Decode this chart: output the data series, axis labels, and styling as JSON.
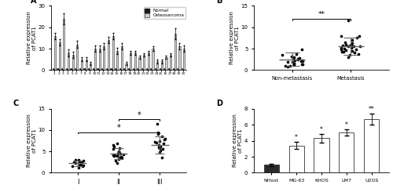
{
  "panel_A": {
    "bar_normal": [
      1,
      1,
      1,
      1,
      1,
      1,
      1,
      1,
      1,
      1,
      1,
      1,
      1,
      1,
      1,
      1,
      1,
      1,
      1,
      1,
      1,
      1,
      1,
      1,
      1,
      1,
      1,
      1,
      1,
      1
    ],
    "bar_osteo": [
      16,
      13,
      24,
      8,
      7,
      12,
      5,
      5,
      3,
      10,
      10,
      11,
      14,
      16,
      9,
      11,
      3,
      8,
      8,
      6,
      7,
      8,
      10,
      4,
      4,
      6,
      7,
      17,
      11,
      10
    ],
    "bar_osteo_err": [
      1.5,
      1.5,
      2.5,
      1.5,
      1.5,
      1.5,
      0.8,
      0.8,
      0.8,
      1.5,
      1.5,
      1.5,
      1.5,
      1.5,
      1.5,
      1.5,
      0.8,
      0.8,
      0.8,
      0.8,
      0.8,
      1.0,
      1.0,
      0.8,
      0.8,
      0.8,
      0.8,
      2.5,
      1.5,
      1.5
    ],
    "ylim": [
      0,
      30
    ],
    "yticks": [
      0,
      10,
      20,
      30
    ],
    "ylabel": "Relative expression\nof PCAT1"
  },
  "panel_B": {
    "non_meta_dots": [
      2.8,
      1.5,
      0.8,
      3.5,
      4.8,
      1.2,
      2.5,
      2.0,
      3.8,
      1.0,
      2.3,
      1.8,
      2.2,
      3.0,
      1.6,
      2.6,
      1.4,
      1.9,
      2.7,
      3.2,
      2.1,
      1.3,
      0.9
    ],
    "meta_dots": [
      5.5,
      4.0,
      8.0,
      5.0,
      4.5,
      7.0,
      5.8,
      11.5,
      4.2,
      3.0,
      5.5,
      6.5,
      4.8,
      8.0,
      5.2,
      5.8,
      4.3,
      3.5,
      6.0,
      7.5,
      5.1,
      4.6,
      3.8,
      5.6,
      6.2,
      5.9,
      4.9
    ],
    "non_meta_mean": 2.5,
    "non_meta_sd": 1.5,
    "meta_mean": 5.5,
    "meta_sd": 2.0,
    "ylim": [
      0,
      15
    ],
    "yticks": [
      0,
      5,
      10,
      15
    ],
    "ylabel": "Relative expression\nof PCAT1",
    "xticklabels": [
      "Non-metastasis",
      "Metastasis"
    ],
    "sig_label": "**"
  },
  "panel_C": {
    "stage_I_dots": [
      2.5,
      1.8,
      2.2,
      1.5,
      2.8,
      3.1,
      2.0,
      1.6,
      1.9,
      2.4,
      1.7,
      3.0,
      2.6,
      1.2,
      2.9
    ],
    "stage_II_dots": [
      4.5,
      3.8,
      6.5,
      4.2,
      5.8,
      3.5,
      4.8,
      2.2,
      4.1,
      3.9,
      6.8,
      2.8,
      5.5,
      4.3,
      3.2,
      4.0,
      6.2,
      4.5,
      5.0,
      3.6
    ],
    "stage_III_dots": [
      8.5,
      6.2,
      9.5,
      7.1,
      5.5,
      6.8,
      7.5,
      3.5,
      4.8,
      5.2,
      11.5,
      6.5,
      7.8,
      8.0,
      9.0,
      6.0,
      5.8,
      7.2
    ],
    "stage_I_mean": 2.2,
    "stage_I_sd": 0.7,
    "stage_II_mean": 4.5,
    "stage_II_sd": 1.3,
    "stage_III_mean": 6.5,
    "stage_III_sd": 2.0,
    "ylim": [
      0,
      15
    ],
    "yticks": [
      0,
      5,
      10,
      15
    ],
    "ylabel": "Relative expression\nof PCAT1",
    "xticklabels": [
      "I",
      "II",
      "III"
    ],
    "sig_label_I_III": "*",
    "sig_label_II_III": "*"
  },
  "panel_D": {
    "categories": [
      "NHost",
      "MG-63",
      "KHOS",
      "LM7",
      "U2OS"
    ],
    "means": [
      1.0,
      3.4,
      4.3,
      5.0,
      6.7
    ],
    "errors": [
      0.15,
      0.45,
      0.5,
      0.4,
      0.65
    ],
    "bar_colors": [
      "#2a2a2a",
      "#ffffff",
      "#ffffff",
      "#ffffff",
      "#ffffff"
    ],
    "ylim": [
      0,
      8
    ],
    "yticks": [
      0,
      2,
      4,
      6,
      8
    ],
    "ylabel": "Relative expression\nof PCAT1",
    "sig_labels": [
      "",
      "*",
      "*",
      "*",
      "**"
    ]
  },
  "bar_color_normal": "#1a1a1a",
  "bar_color_osteo": "#d0d0d0",
  "bar_edge_color": "#333333",
  "figure_bg": "#ffffff"
}
